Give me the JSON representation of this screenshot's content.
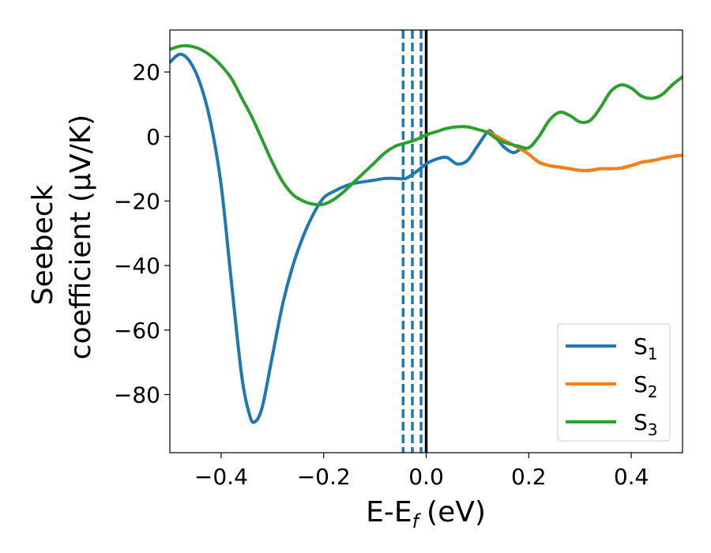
{
  "chart_data": {
    "type": "line",
    "title": "",
    "xlabel": "E-E",
    "xlabel_sub": "f",
    "xlabel_unit": "(eV)",
    "ylabel_line1": "Seebeck",
    "ylabel_line2": "coefficient  (μV/K)",
    "xlim": [
      -0.5,
      0.5
    ],
    "ylim": [
      -98,
      33
    ],
    "xticks": [
      -0.4,
      -0.2,
      0.0,
      0.2,
      0.4
    ],
    "xtick_labels": [
      "−0.4",
      "−0.2",
      "0.0",
      "0.2",
      "0.4"
    ],
    "yticks": [
      20,
      0,
      -20,
      -40,
      -60,
      -80
    ],
    "ytick_labels": [
      "20",
      "0",
      "−20",
      "−40",
      "−60",
      "−80"
    ],
    "grid": false,
    "legend_position": "bottom-right",
    "vertical_lines": [
      {
        "x": -0.045,
        "style": "dashed",
        "color": "#1f77b4"
      },
      {
        "x": -0.027,
        "style": "dashed",
        "color": "#1f77b4"
      },
      {
        "x": -0.01,
        "style": "dashed",
        "color": "#1f77b4"
      },
      {
        "x": 0.0,
        "style": "solid",
        "color": "#000000"
      }
    ],
    "series": [
      {
        "name": "S",
        "sub": "1",
        "color": "#1f77b4",
        "points": [
          [
            -0.5,
            23
          ],
          [
            -0.48,
            25.5
          ],
          [
            -0.46,
            23
          ],
          [
            -0.44,
            16
          ],
          [
            -0.42,
            4
          ],
          [
            -0.4,
            -15
          ],
          [
            -0.38,
            -45
          ],
          [
            -0.36,
            -74
          ],
          [
            -0.345,
            -86
          ],
          [
            -0.335,
            -88.5
          ],
          [
            -0.32,
            -84
          ],
          [
            -0.3,
            -68
          ],
          [
            -0.28,
            -52
          ],
          [
            -0.26,
            -40
          ],
          [
            -0.24,
            -31
          ],
          [
            -0.22,
            -24
          ],
          [
            -0.2,
            -19
          ],
          [
            -0.18,
            -17
          ],
          [
            -0.16,
            -15.5
          ],
          [
            -0.14,
            -14.5
          ],
          [
            -0.12,
            -14
          ],
          [
            -0.1,
            -13.5
          ],
          [
            -0.08,
            -13
          ],
          [
            -0.06,
            -13
          ],
          [
            -0.04,
            -13
          ],
          [
            -0.02,
            -11
          ],
          [
            0.0,
            -8.5
          ],
          [
            0.02,
            -7
          ],
          [
            0.04,
            -6.5
          ],
          [
            0.06,
            -8.5
          ],
          [
            0.08,
            -7.5
          ],
          [
            0.1,
            -3
          ],
          [
            0.12,
            1.5
          ],
          [
            0.13,
            1
          ],
          [
            0.15,
            -3
          ],
          [
            0.17,
            -5
          ],
          [
            0.185,
            -4
          ],
          [
            0.2,
            -5.5
          ],
          [
            0.22,
            -8
          ],
          [
            0.24,
            -9
          ],
          [
            0.26,
            -9.5
          ],
          [
            0.28,
            -10
          ],
          [
            0.3,
            -10.5
          ],
          [
            0.32,
            -10.5
          ],
          [
            0.34,
            -10
          ],
          [
            0.36,
            -10
          ],
          [
            0.38,
            -9.8
          ],
          [
            0.4,
            -9
          ],
          [
            0.42,
            -8
          ],
          [
            0.44,
            -7.5
          ],
          [
            0.46,
            -6.8
          ],
          [
            0.48,
            -6.2
          ],
          [
            0.5,
            -5.8
          ]
        ]
      },
      {
        "name": "S",
        "sub": "2",
        "color": "#ff7f0e",
        "points": [
          [
            0.12,
            1.5
          ],
          [
            0.15,
            -1
          ],
          [
            0.18,
            -3.5
          ],
          [
            0.2,
            -5.5
          ],
          [
            0.22,
            -8
          ],
          [
            0.24,
            -9
          ],
          [
            0.26,
            -9.5
          ],
          [
            0.28,
            -10
          ],
          [
            0.3,
            -10.5
          ],
          [
            0.32,
            -10.5
          ],
          [
            0.34,
            -10
          ],
          [
            0.36,
            -10
          ],
          [
            0.38,
            -9.8
          ],
          [
            0.4,
            -9
          ],
          [
            0.42,
            -8
          ],
          [
            0.44,
            -7.5
          ],
          [
            0.46,
            -6.8
          ],
          [
            0.48,
            -6.2
          ],
          [
            0.5,
            -5.8
          ]
        ]
      },
      {
        "name": "S",
        "sub": "3",
        "color": "#2ca02c",
        "points": [
          [
            -0.5,
            27
          ],
          [
            -0.48,
            28
          ],
          [
            -0.46,
            28
          ],
          [
            -0.44,
            27
          ],
          [
            -0.42,
            25
          ],
          [
            -0.4,
            22
          ],
          [
            -0.38,
            18
          ],
          [
            -0.36,
            12
          ],
          [
            -0.34,
            6
          ],
          [
            -0.32,
            -1
          ],
          [
            -0.3,
            -8
          ],
          [
            -0.28,
            -14
          ],
          [
            -0.26,
            -18
          ],
          [
            -0.24,
            -20
          ],
          [
            -0.22,
            -21
          ],
          [
            -0.2,
            -21
          ],
          [
            -0.18,
            -19.5
          ],
          [
            -0.16,
            -17
          ],
          [
            -0.14,
            -14
          ],
          [
            -0.12,
            -11
          ],
          [
            -0.1,
            -8
          ],
          [
            -0.08,
            -5
          ],
          [
            -0.06,
            -3
          ],
          [
            -0.04,
            -2
          ],
          [
            -0.02,
            -1
          ],
          [
            0.0,
            0.5
          ],
          [
            0.02,
            1.5
          ],
          [
            0.04,
            2.5
          ],
          [
            0.06,
            3
          ],
          [
            0.08,
            3
          ],
          [
            0.1,
            2.2
          ],
          [
            0.12,
            1.2
          ],
          [
            0.14,
            -1
          ],
          [
            0.16,
            -2.2
          ],
          [
            0.18,
            -3
          ],
          [
            0.2,
            -3.5
          ],
          [
            0.22,
            0
          ],
          [
            0.24,
            5
          ],
          [
            0.26,
            7.5
          ],
          [
            0.28,
            6.5
          ],
          [
            0.3,
            4.5
          ],
          [
            0.32,
            5
          ],
          [
            0.34,
            9
          ],
          [
            0.36,
            14
          ],
          [
            0.38,
            16
          ],
          [
            0.4,
            15
          ],
          [
            0.42,
            12.5
          ],
          [
            0.44,
            11.8
          ],
          [
            0.46,
            13
          ],
          [
            0.48,
            16
          ],
          [
            0.5,
            18.5
          ]
        ]
      }
    ]
  }
}
